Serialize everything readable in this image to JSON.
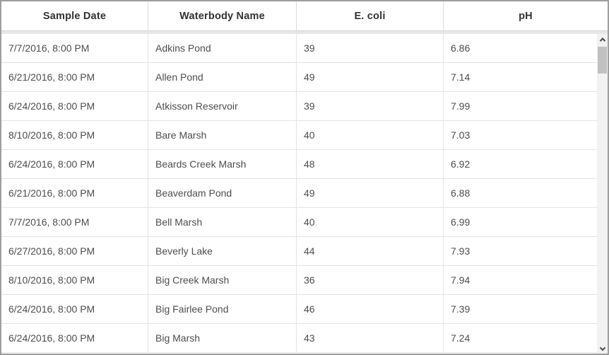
{
  "colors": {
    "frame_border": "#9e9e9e",
    "grid_line": "#e4e4e4",
    "header_band": "#e7e7e7",
    "header_text": "#323232",
    "cell_text": "#4d4d4d",
    "scrollbar_track": "#f2f2f2",
    "scrollbar_thumb": "#c1c1c1"
  },
  "table": {
    "columns": [
      {
        "key": "sample_date",
        "label": "Sample Date"
      },
      {
        "key": "waterbody_name",
        "label": "Waterbody Name"
      },
      {
        "key": "e_coli",
        "label": "E. coli"
      },
      {
        "key": "ph",
        "label": "pH"
      }
    ],
    "rows": [
      [
        "7/7/2016, 8:00 PM",
        "Adkins Pond",
        "39",
        "6.86"
      ],
      [
        "6/21/2016, 8:00 PM",
        "Allen Pond",
        "49",
        "7.14"
      ],
      [
        "6/24/2016, 8:00 PM",
        "Atkisson Reservoir",
        "39",
        "7.99"
      ],
      [
        "8/10/2016, 8:00 PM",
        "Bare Marsh",
        "40",
        "7.03"
      ],
      [
        "6/24/2016, 8:00 PM",
        "Beards Creek Marsh",
        "48",
        "6.92"
      ],
      [
        "6/21/2016, 8:00 PM",
        "Beaverdam Pond",
        "49",
        "6.88"
      ],
      [
        "7/7/2016, 8:00 PM",
        "Bell Marsh",
        "40",
        "6.99"
      ],
      [
        "6/27/2016, 8:00 PM",
        "Beverly Lake",
        "44",
        "7.93"
      ],
      [
        "8/10/2016, 8:00 PM",
        "Big Creek Marsh",
        "36",
        "7.94"
      ],
      [
        "6/24/2016, 8:00 PM",
        "Big Fairlee Pond",
        "46",
        "7.39"
      ],
      [
        "6/24/2016, 8:00 PM",
        "Big Marsh",
        "43",
        "7.24"
      ]
    ]
  },
  "scrollbar": {
    "up_icon": "chevron-up",
    "down_icon": "chevron-down"
  }
}
